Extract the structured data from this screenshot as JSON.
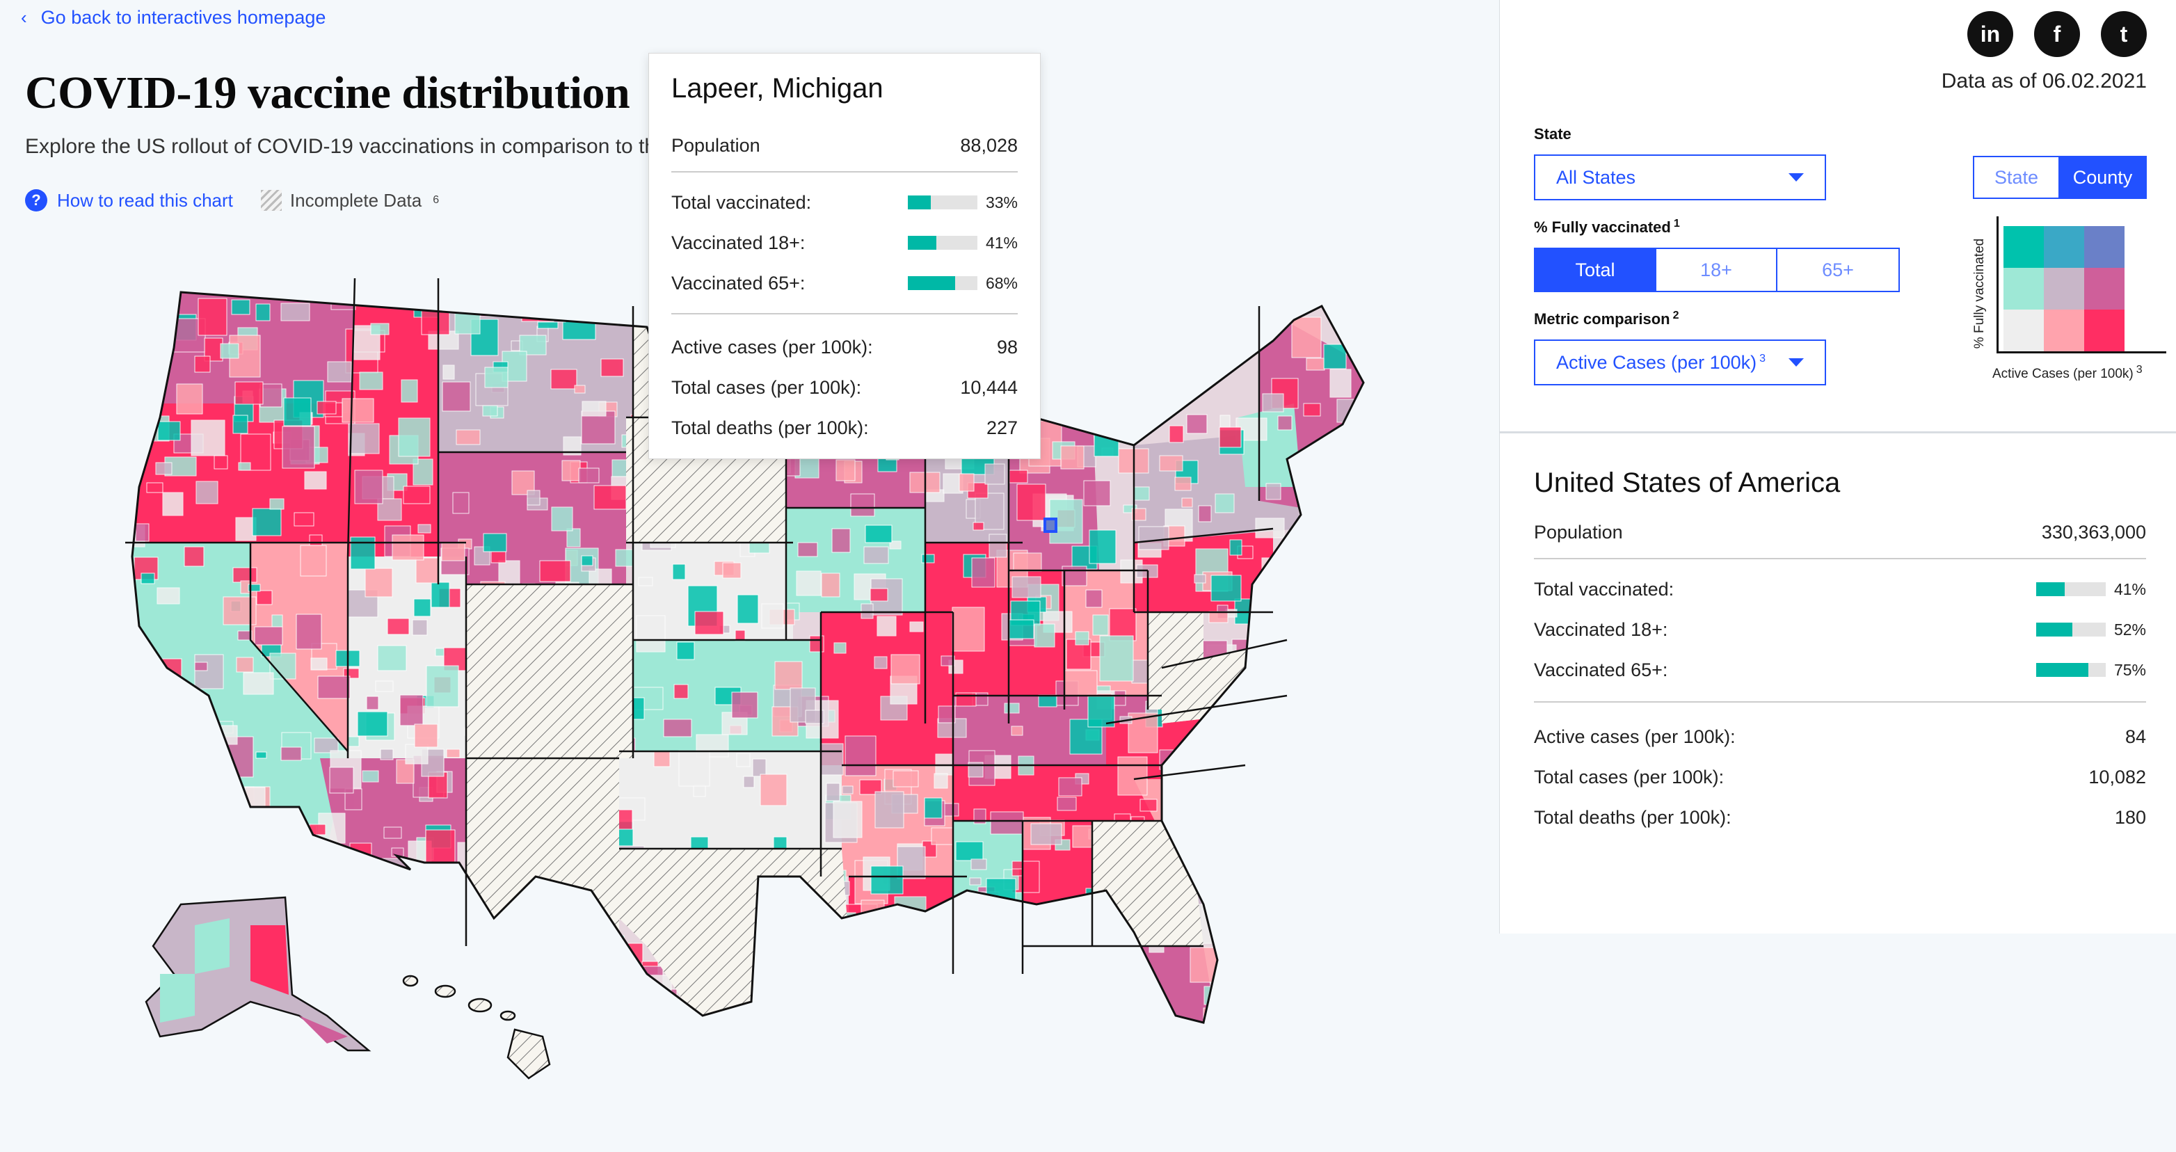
{
  "header": {
    "back_link": "Go back to interactives homepage",
    "title": "COVID-19 vaccine distribution",
    "subtitle": "Explore the US rollout of COVID-19 vaccinations in comparison to th",
    "help_link": "How to read this chart",
    "incomplete_label": "Incomplete Data",
    "incomplete_note": "6"
  },
  "tooltip": {
    "title": "Lapeer, Michigan",
    "population_label": "Population",
    "population_value": "88,028",
    "vaccination": [
      {
        "label": "Total vaccinated:",
        "value": "33%",
        "fraction": 0.33
      },
      {
        "label": "Vaccinated 18+:",
        "value": "41%",
        "fraction": 0.41
      },
      {
        "label": "Vaccinated 65+:",
        "value": "68%",
        "fraction": 0.68
      }
    ],
    "cases": [
      {
        "label": "Active cases (per 100k):",
        "value": "98"
      },
      {
        "label": "Total cases (per 100k):",
        "value": "10,444"
      },
      {
        "label": "Total deaths (per 100k):",
        "value": "227"
      }
    ]
  },
  "panel": {
    "social": [
      "linkedin-icon",
      "facebook-icon",
      "twitter-icon"
    ],
    "social_glyphs": [
      "in",
      "f",
      "t"
    ],
    "data_as_of": "Data as of 06.02.2021",
    "state_label": "State",
    "state_value": "All States",
    "vacc_label": "% Fully vaccinated",
    "vacc_note": "1",
    "vacc_options": [
      "Total",
      "18+",
      "65+"
    ],
    "vacc_selected": "Total",
    "metric_label": "Metric comparison",
    "metric_note": "2",
    "metric_value": "Active Cases (per 100k)",
    "metric_value_note": "3",
    "level_options": [
      "State",
      "County"
    ],
    "level_selected": "County",
    "legend": {
      "ylabel": "% Fully vaccinated",
      "xlabel": "Active Cases (per 100k)",
      "xlabel_note": "3",
      "colors": [
        [
          "#00c2ad",
          "#3aa8c6",
          "#6a80c8"
        ],
        [
          "#9ee8d6",
          "#c8b6c8",
          "#cf5f9a"
        ],
        [
          "#eeeeee",
          "#ffa3ad",
          "#ff2e63"
        ]
      ]
    }
  },
  "us_summary": {
    "title": "United States of America",
    "population_label": "Population",
    "population_value": "330,363,000",
    "vaccination": [
      {
        "label": "Total vaccinated:",
        "value": "41%",
        "fraction": 0.41
      },
      {
        "label": "Vaccinated 18+:",
        "value": "52%",
        "fraction": 0.52
      },
      {
        "label": "Vaccinated 65+:",
        "value": "75%",
        "fraction": 0.75
      }
    ],
    "cases": [
      {
        "label": "Active cases (per 100k):",
        "value": "84"
      },
      {
        "label": "Total cases (per 100k):",
        "value": "10,082"
      },
      {
        "label": "Total deaths (per 100k):",
        "value": "180"
      }
    ]
  },
  "map_colors": {
    "hot": "#ff2e63",
    "pink": "#ffa3ad",
    "magenta": "#cf5f9a",
    "mauve": "#c8b6c8",
    "mint": "#9ee8d6",
    "teal": "#00c2ad",
    "grey": "#eeeeee"
  }
}
